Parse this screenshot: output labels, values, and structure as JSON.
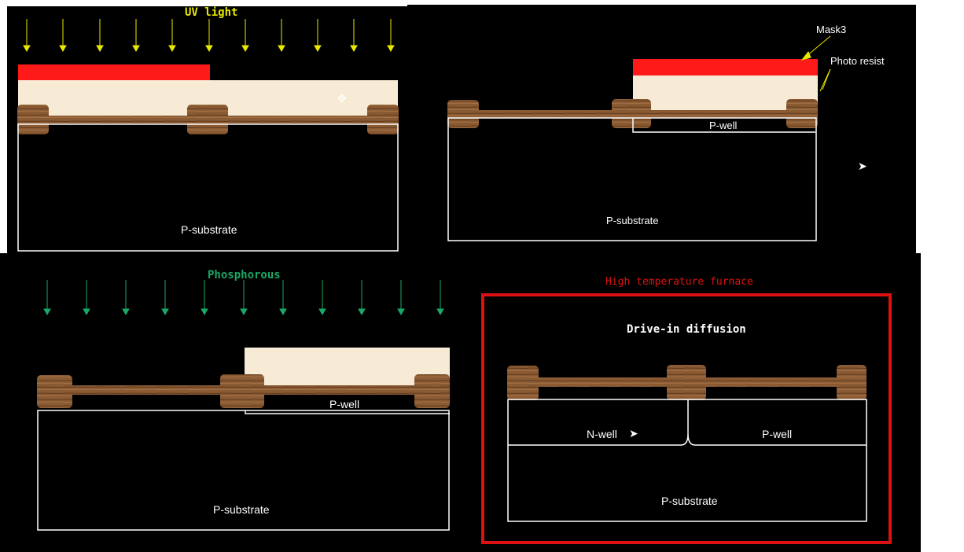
{
  "panels": {
    "uv_exposure": {
      "heading": "UV light",
      "substrate_label": "P-substrate"
    },
    "pwell_masked": {
      "mask_label": "Mask3",
      "resist_label": "Photo resist",
      "well_label": "P-well",
      "substrate_label": "P-substrate"
    },
    "phosphorous_implant": {
      "heading": "Phosphorous",
      "well_label": "P-well",
      "substrate_label": "P-substrate"
    },
    "drive_in": {
      "heading": "High temperature furnace",
      "subheading": "Drive-in diffusion",
      "nwell_label": "N-well",
      "pwell_label": "P-well",
      "substrate_label": "P-substrate"
    }
  },
  "colors": {
    "background": "#000000",
    "mask": "#ff1a1a",
    "photoresist": "#f7ebd6",
    "oxide": "#8a5a33",
    "uv_text": "#e8e800",
    "phosphorous_text": "#1aa866",
    "furnace": "#dd1111"
  }
}
